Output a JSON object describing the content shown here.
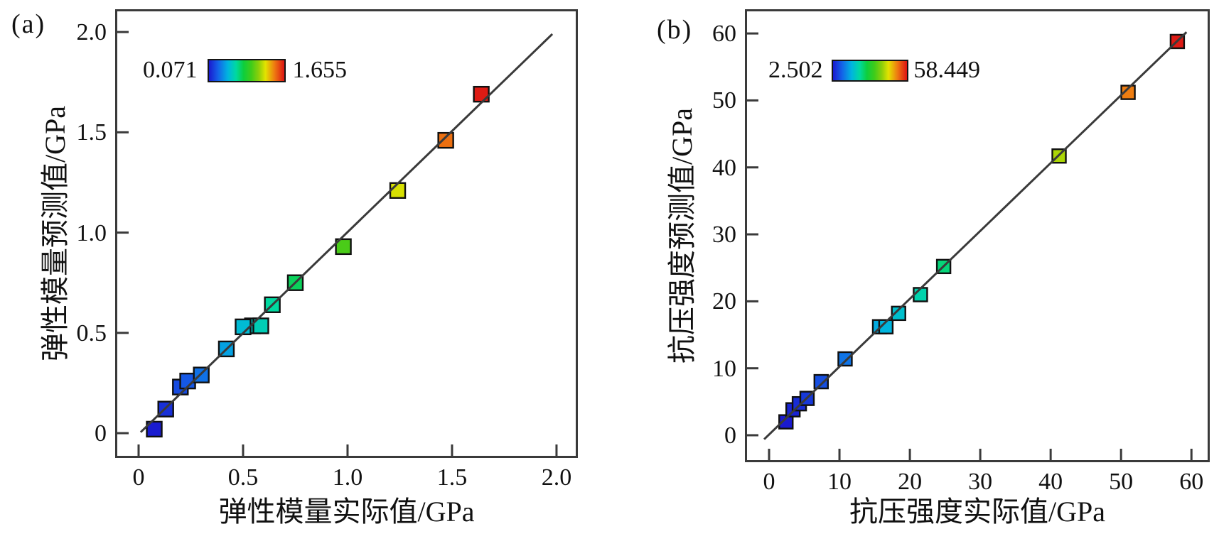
{
  "figure": {
    "background": "#ffffff",
    "axis_color": "#3a3a3a",
    "text_color": "#111111",
    "marker_stroke": "#101010",
    "identity_line_color": "#3a3a3a"
  },
  "colormap_stops": [
    [
      0.0,
      "#1A1ACF"
    ],
    [
      0.12,
      "#1462E8"
    ],
    [
      0.25,
      "#00B4E0"
    ],
    [
      0.36,
      "#00D9A0"
    ],
    [
      0.46,
      "#0ECE3C"
    ],
    [
      0.56,
      "#3FCC1A"
    ],
    [
      0.66,
      "#8CCF0A"
    ],
    [
      0.75,
      "#E3E300"
    ],
    [
      0.87,
      "#EE7A11"
    ],
    [
      1.0,
      "#DD1414"
    ]
  ],
  "chart_data": [
    {
      "type": "scatter",
      "panel_tag": "(a)",
      "xlabel": "弹性模量实际值/GPa",
      "ylabel": "弹性模量预测值/GPa",
      "xlim": [
        -0.102,
        2.092
      ],
      "ylim": [
        -0.113,
        2.103
      ],
      "grid": false,
      "xticks": {
        "values": [
          0,
          0.5,
          1.0,
          1.5,
          2.0
        ],
        "labels": [
          "0",
          "0.5",
          "1.0",
          "1.5",
          "2.0"
        ]
      },
      "yticks": {
        "values": [
          0,
          0.5,
          1.0,
          1.5,
          2.0
        ],
        "labels": [
          "0",
          "0.5",
          "1.0",
          "1.5",
          "2.0"
        ]
      },
      "identity_line": {
        "x1": 0.01,
        "y1": 0.005,
        "x2": 1.98,
        "y2": 1.99
      },
      "colorbar": {
        "vmin": 0.071,
        "vmax": 1.655,
        "min_label": "0.071",
        "max_label": "1.655",
        "position": "top-left-inside"
      },
      "marker": {
        "shape": "square",
        "size": 21
      },
      "points": [
        {
          "x": 0.075,
          "y": 0.02
        },
        {
          "x": 0.13,
          "y": 0.12
        },
        {
          "x": 0.2,
          "y": 0.23
        },
        {
          "x": 0.235,
          "y": 0.26
        },
        {
          "x": 0.3,
          "y": 0.29
        },
        {
          "x": 0.42,
          "y": 0.42
        },
        {
          "x": 0.545,
          "y": 0.535
        },
        {
          "x": 0.5,
          "y": 0.53
        },
        {
          "x": 0.585,
          "y": 0.535
        },
        {
          "x": 0.64,
          "y": 0.64
        },
        {
          "x": 0.75,
          "y": 0.75
        },
        {
          "x": 0.98,
          "y": 0.93
        },
        {
          "x": 1.24,
          "y": 1.21
        },
        {
          "x": 1.47,
          "y": 1.46
        },
        {
          "x": 1.64,
          "y": 1.69
        }
      ]
    },
    {
      "type": "scatter",
      "panel_tag": "(b)",
      "xlabel": "抗压强度实际值/GPa",
      "ylabel": "抗压强度预测值/GPa",
      "xlim": [
        -3.13,
        62.3
      ],
      "ylim": [
        -3.71,
        63.3
      ],
      "grid": false,
      "xticks": {
        "values": [
          0,
          10,
          20,
          30,
          40,
          50,
          60
        ],
        "labels": [
          "0",
          "10",
          "20",
          "30",
          "40",
          "50",
          "60"
        ]
      },
      "yticks": {
        "values": [
          0,
          10,
          20,
          30,
          40,
          50,
          60
        ],
        "labels": [
          "0",
          "10",
          "20",
          "30",
          "40",
          "50",
          "60"
        ]
      },
      "identity_line": {
        "x1": -0.7,
        "y1": -0.6,
        "x2": 59.3,
        "y2": 60.2
      },
      "colorbar": {
        "vmin": 2.502,
        "vmax": 58.449,
        "min_label": "2.502",
        "max_label": "58.449",
        "position": "top-left-inside"
      },
      "marker": {
        "shape": "square",
        "size": 19
      },
      "points": [
        {
          "x": 2.4,
          "y": 2.0
        },
        {
          "x": 3.4,
          "y": 3.8
        },
        {
          "x": 4.3,
          "y": 4.7
        },
        {
          "x": 5.4,
          "y": 5.5
        },
        {
          "x": 7.4,
          "y": 8.0
        },
        {
          "x": 10.8,
          "y": 11.4
        },
        {
          "x": 15.7,
          "y": 16.2
        },
        {
          "x": 16.6,
          "y": 16.2
        },
        {
          "x": 18.4,
          "y": 18.2
        },
        {
          "x": 21.5,
          "y": 21.0
        },
        {
          "x": 24.8,
          "y": 25.2
        },
        {
          "x": 41.2,
          "y": 41.7
        },
        {
          "x": 51.0,
          "y": 51.2
        },
        {
          "x": 58.0,
          "y": 58.8
        }
      ]
    }
  ]
}
